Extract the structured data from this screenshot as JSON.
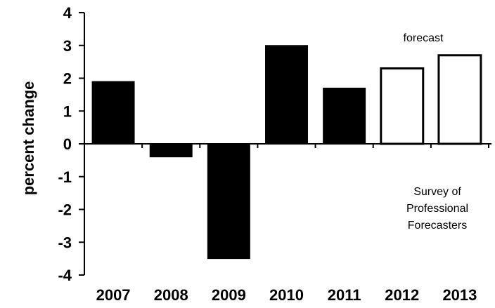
{
  "chart_data": {
    "type": "bar",
    "categories": [
      "2007",
      "2008",
      "2009",
      "2010",
      "2011",
      "2012",
      "2013"
    ],
    "values": [
      1.9,
      -0.4,
      -3.5,
      3.0,
      1.7,
      2.3,
      2.7
    ],
    "bar_styles": [
      "filled",
      "filled",
      "filled",
      "filled",
      "filled",
      "outline",
      "outline"
    ],
    "ylabel": "percent change",
    "ylim": [
      -4,
      4
    ],
    "yticks": [
      -4,
      -3,
      -2,
      -1,
      0,
      1,
      2,
      3,
      4
    ],
    "grid": false,
    "annotations": {
      "forecast": "forecast",
      "source_lines": [
        "Survey of",
        "Professional",
        "Forecasters"
      ]
    },
    "colors": {
      "filled": "#000000",
      "outline_fill": "#ffffff",
      "axis": "#000000"
    }
  }
}
